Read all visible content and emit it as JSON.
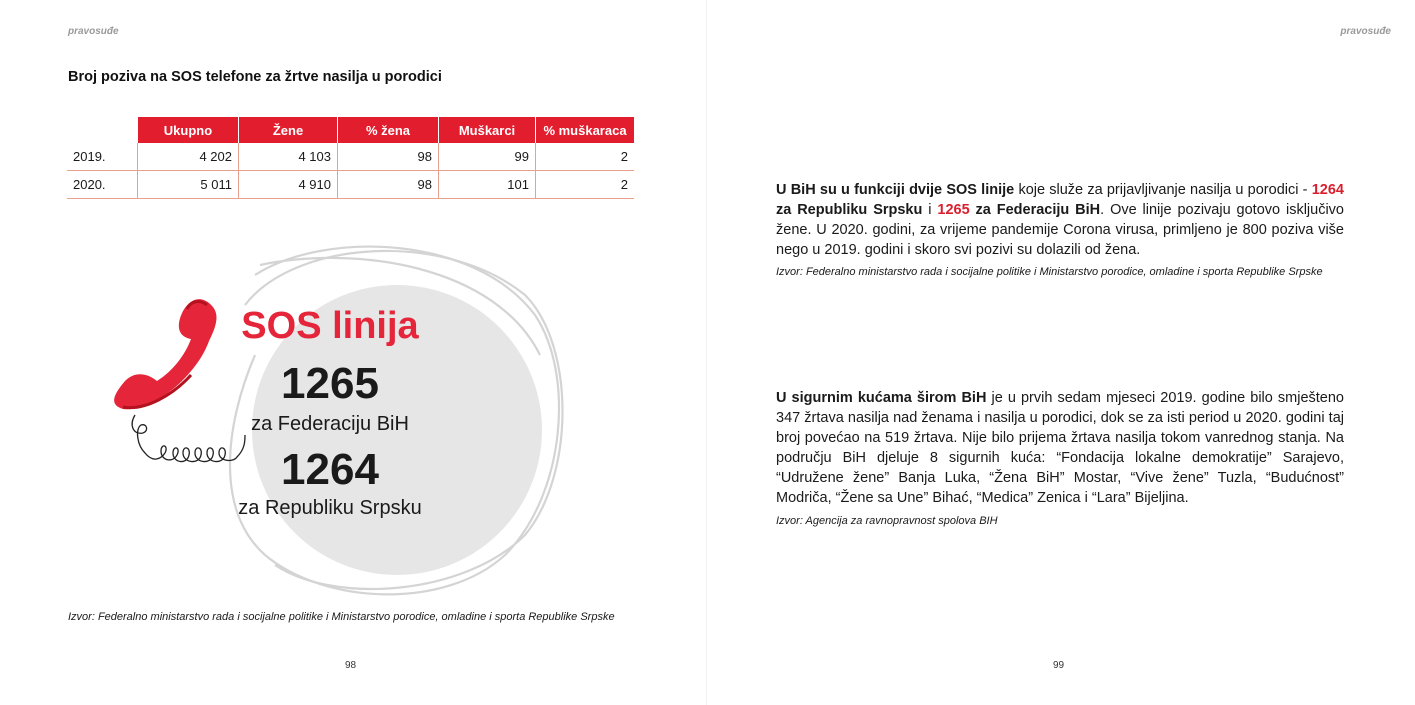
{
  "left_page": {
    "section_label": "pravosuđe",
    "table_title": "Broj poziva na SOS telefone za žrtve nasilja u porodici",
    "table": {
      "headers": [
        "Ukupno",
        "Žene",
        "% žena",
        "Muškarci",
        "% muškaraca"
      ],
      "rows": [
        {
          "year": "2019.",
          "cells": [
            "4 202",
            "4 103",
            "98",
            "99",
            "2"
          ]
        },
        {
          "year": "2020.",
          "cells": [
            "5 011",
            "4 910",
            "98",
            "101",
            "2"
          ]
        }
      ]
    },
    "infographic": {
      "title": "SOS linija",
      "line1_number": "1265",
      "line1_label": "za Federaciju BiH",
      "line2_number": "1264",
      "line2_label": "za Republiku Srpsku"
    },
    "source": "Izvor: Federalno ministarstvo rada i socijalne politike i Ministarstvo porodice, omladine i sporta Republike Srpske",
    "page_number": "98"
  },
  "right_page": {
    "section_label": "pravosuđe",
    "para1": {
      "lead": "U BiH su u funkciji dvije SOS linije",
      "text1": " koje služe za prijavljivanje nasilja u porodici - ",
      "num1": "1264",
      "label1": " za Republiku Srpsku",
      "text2": " i ",
      "num2": "1265",
      "label2": " za Federaciju BiH",
      "text3": ". Ove linije pozivaju gotovo isključivo žene. U 2020. godini, za vrijeme pandemije Corona virusa, primljeno je 800 poziva više nego u 2019. godini i skoro svi pozivi su dolazili od žena."
    },
    "source1": "Izvor: Federalno ministarstvo rada i socijalne politike i Ministarstvo porodice, omladine i sporta Republike Srpske",
    "para2": {
      "lead": "U sigurnim kućama širom BiH",
      "text": " je u prvih sedam mjeseci 2019. godine bilo smješteno 347 žrtava nasilja nad ženama i nasilja u porodici, dok se za isti period u 2020. godini taj broj povećao na 519 žrtava. Nije bilo prijema žrtava nasilja tokom vanrednog stanja. Na području BiH djeluje 8 sigurnih kuća: “Fondacija lokalne demokratije” Sarajevo, “Udružene žene” Banja Luka, “Žena BiH” Mostar, “Vive žene” Tuzla, “Budućnost” Modriča, “Žene sa Une” Bihać, “Medica” Zenica i “Lara” Bijeljina."
    },
    "source2": "Izvor: Agencija za ravnopravnost spolova BIH",
    "page_number": "99"
  },
  "colors": {
    "accent_red": "#e11d2e",
    "circle_gray": "#e6e6e6",
    "table_rule": "#e8a08f"
  }
}
